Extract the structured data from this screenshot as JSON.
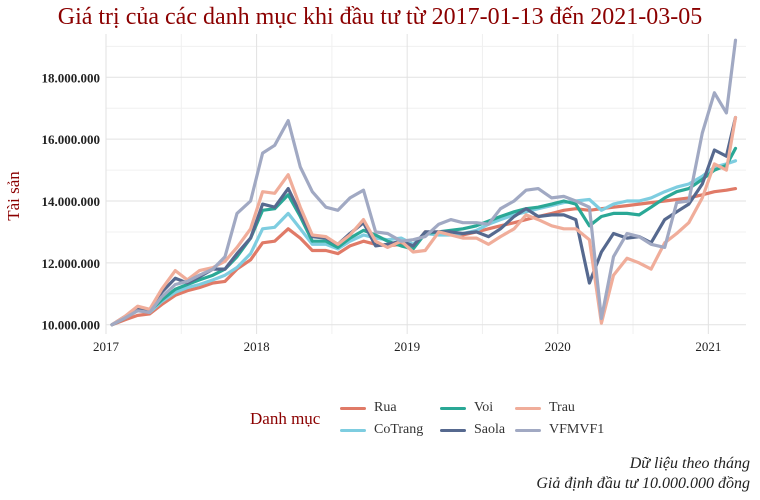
{
  "chart_data": {
    "type": "line",
    "title": "Giá trị của các danh mục khi đầu tư từ 2017-01-13 đến 2021-03-05",
    "ylabel": "Tài sản",
    "xlabel": "",
    "xlim": [
      2017.0,
      2021.25
    ],
    "ylim": [
      9700000,
      19400000
    ],
    "xticks": [
      {
        "v": 2017,
        "label": "2017"
      },
      {
        "v": 2018,
        "label": "2018"
      },
      {
        "v": 2019,
        "label": "2019"
      },
      {
        "v": 2020,
        "label": "2020"
      },
      {
        "v": 2021,
        "label": "2021"
      }
    ],
    "yticks": [
      {
        "v": 10000000,
        "label": "10.000.000"
      },
      {
        "v": 12000000,
        "label": "12.000.000"
      },
      {
        "v": 14000000,
        "label": "14.000.000"
      },
      {
        "v": 16000000,
        "label": "16.000.000"
      },
      {
        "v": 18000000,
        "label": "18.000.000"
      }
    ],
    "grid": true,
    "legend_title": "Danh mục",
    "legend_position": "bottom",
    "x": [
      2017.04,
      2017.12,
      2017.21,
      2017.29,
      2017.37,
      2017.46,
      2017.54,
      2017.62,
      2017.71,
      2017.79,
      2017.87,
      2017.96,
      2018.04,
      2018.12,
      2018.21,
      2018.29,
      2018.37,
      2018.46,
      2018.54,
      2018.62,
      2018.71,
      2018.79,
      2018.87,
      2018.96,
      2019.04,
      2019.12,
      2019.21,
      2019.29,
      2019.37,
      2019.46,
      2019.54,
      2019.62,
      2019.71,
      2019.79,
      2019.87,
      2019.96,
      2020.04,
      2020.12,
      2020.21,
      2020.29,
      2020.37,
      2020.46,
      2020.54,
      2020.62,
      2020.71,
      2020.79,
      2020.87,
      2020.96,
      2021.04,
      2021.12,
      2021.18
    ],
    "series": [
      {
        "name": "Rua",
        "color": "#e07a67",
        "values": [
          10000000,
          10150000,
          10300000,
          10350000,
          10650000,
          10950000,
          11100000,
          11200000,
          11350000,
          11400000,
          11800000,
          12100000,
          12650000,
          12700000,
          13100000,
          12800000,
          12400000,
          12400000,
          12300000,
          12550000,
          12700000,
          12600000,
          12550000,
          12600000,
          12500000,
          13000000,
          12950000,
          12950000,
          12900000,
          13000000,
          13100000,
          13200000,
          13300000,
          13400000,
          13500000,
          13600000,
          13700000,
          13750000,
          13700000,
          13750000,
          13800000,
          13850000,
          13900000,
          13950000,
          14000000,
          14050000,
          14100000,
          14200000,
          14300000,
          14350000,
          14400000
        ]
      },
      {
        "name": "CoTrang",
        "color": "#7ecde0",
        "values": [
          10000000,
          10200000,
          10500000,
          10400000,
          10750000,
          11050000,
          11200000,
          11300000,
          11450000,
          11600000,
          11850000,
          12300000,
          13100000,
          13150000,
          13600000,
          13100000,
          12600000,
          12600000,
          12450000,
          12700000,
          12900000,
          12800000,
          12750000,
          12800000,
          12600000,
          12950000,
          12900000,
          12900000,
          12950000,
          13050000,
          13250000,
          13400000,
          13550000,
          13650000,
          13750000,
          13850000,
          13950000,
          14000000,
          14050000,
          13700000,
          13900000,
          14000000,
          14000000,
          14100000,
          14300000,
          14450000,
          14550000,
          14800000,
          15100000,
          15200000,
          15300000
        ]
      },
      {
        "name": "Voi",
        "color": "#2aa896",
        "values": [
          10000000,
          10200000,
          10500000,
          10450000,
          10800000,
          11150000,
          11300000,
          11450000,
          11600000,
          11800000,
          12200000,
          12800000,
          13700000,
          13750000,
          14200000,
          13500000,
          12700000,
          12700000,
          12500000,
          12800000,
          13050000,
          12900000,
          12700000,
          12550000,
          12450000,
          12950000,
          13000000,
          13050000,
          13100000,
          13200000,
          13350000,
          13500000,
          13650000,
          13750000,
          13800000,
          13900000,
          14000000,
          13900000,
          13200000,
          13500000,
          13600000,
          13600000,
          13550000,
          13800000,
          14100000,
          14300000,
          14400000,
          14700000,
          15000000,
          15150000,
          15700000
        ]
      },
      {
        "name": "Saola",
        "color": "#56698f",
        "values": [
          10000000,
          10250000,
          10500000,
          10450000,
          11050000,
          11500000,
          11350000,
          11550000,
          11800000,
          11800000,
          12300000,
          12800000,
          13900000,
          13800000,
          14400000,
          13600000,
          12850000,
          12800000,
          12600000,
          12950000,
          13300000,
          12550000,
          12600000,
          12700000,
          12550000,
          13000000,
          13000000,
          13000000,
          12950000,
          13000000,
          12850000,
          13100000,
          13500000,
          13750000,
          13500000,
          13550000,
          13550000,
          13400000,
          11350000,
          12350000,
          12950000,
          12800000,
          12850000,
          12650000,
          13400000,
          13650000,
          13900000,
          14550000,
          15650000,
          15450000,
          16700000
        ]
      },
      {
        "name": "Trau",
        "color": "#f0ad9a",
        "values": [
          10000000,
          10250000,
          10600000,
          10500000,
          11150000,
          11750000,
          11450000,
          11750000,
          11850000,
          12050000,
          12500000,
          13100000,
          14300000,
          14250000,
          14850000,
          13800000,
          12900000,
          12850000,
          12600000,
          12900000,
          13400000,
          12700000,
          12500000,
          12700000,
          12350000,
          12400000,
          13000000,
          12900000,
          12800000,
          12800000,
          12600000,
          12850000,
          13100000,
          13550000,
          13400000,
          13200000,
          13100000,
          13100000,
          12750000,
          10050000,
          11600000,
          12150000,
          12000000,
          11800000,
          12650000,
          12950000,
          13300000,
          14100000,
          15200000,
          15000000,
          16700000
        ]
      },
      {
        "name": "VFMVF1",
        "color": "#a1a9c3",
        "values": [
          10000000,
          10200000,
          10450000,
          10400000,
          10900000,
          11300000,
          11400000,
          11600000,
          11800000,
          12200000,
          13600000,
          14000000,
          15550000,
          15800000,
          16600000,
          15100000,
          14300000,
          13800000,
          13700000,
          14100000,
          14350000,
          13000000,
          12950000,
          12700000,
          12750000,
          12850000,
          13250000,
          13400000,
          13300000,
          13300000,
          13250000,
          13750000,
          14000000,
          14350000,
          14400000,
          14100000,
          14150000,
          14000000,
          13800000,
          10200000,
          12200000,
          12950000,
          12850000,
          12600000,
          12500000,
          13950000,
          14000000,
          16200000,
          17500000,
          16850000,
          19200000
        ]
      }
    ]
  },
  "caption": {
    "line1": "Dữ liệu theo tháng",
    "line2": "Giả định đầu tư 10.000.000 đồng"
  }
}
